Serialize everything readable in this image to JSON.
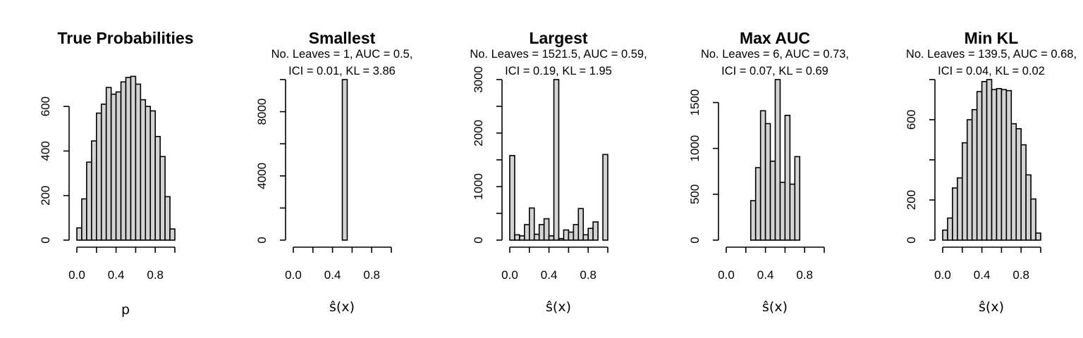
{
  "chart_data": [
    {
      "type": "bar",
      "title": "True Probabilities",
      "subtitle": [],
      "xlabel": "p",
      "ylabel": "",
      "xlim": [
        0,
        1
      ],
      "xticks": [
        0,
        0.4,
        0.8
      ],
      "xticklabels": [
        "0.0",
        "0.4",
        "0.8"
      ],
      "ylim": [
        0,
        730
      ],
      "yticks": [
        0,
        200,
        400,
        600
      ],
      "yticklabels": [
        "0",
        "200",
        "400",
        "600"
      ],
      "bin_width": 0.05,
      "values": [
        55,
        185,
        350,
        445,
        570,
        610,
        685,
        655,
        665,
        710,
        730,
        735,
        700,
        630,
        600,
        580,
        465,
        375,
        195,
        50
      ]
    },
    {
      "type": "bar",
      "title": "Smallest",
      "subtitle": [
        "No. Leaves = 1, AUC = 0.5,",
        "ICI = 0.01, KL = 3.86"
      ],
      "xlabel": "ŝ(x)",
      "ylabel": "",
      "xlim": [
        0,
        1
      ],
      "xticks": [
        0,
        0.4,
        0.8
      ],
      "xticklabels": [
        "0.0",
        "0.4",
        "0.8"
      ],
      "ylim": [
        0,
        10000
      ],
      "yticks": [
        0,
        4000,
        8000
      ],
      "yticklabels": [
        "0",
        "4000",
        "8000"
      ],
      "ytick_marks": [
        0,
        2000,
        4000,
        6000,
        8000,
        10000
      ],
      "bin_width": 0.05,
      "values": [
        0,
        0,
        0,
        0,
        0,
        0,
        0,
        0,
        0,
        0,
        10000,
        0,
        0,
        0,
        0,
        0,
        0,
        0,
        0,
        0
      ]
    },
    {
      "type": "bar",
      "title": "Largest",
      "subtitle": [
        "No. Leaves = 1521.5, AUC = 0.59,",
        "ICI = 0.19, KL = 1.95"
      ],
      "xlabel": "ŝ(x)",
      "ylabel": "",
      "xlim": [
        0,
        1
      ],
      "xticks": [
        0,
        0.4,
        0.8
      ],
      "xticklabels": [
        "0.0",
        "0.4",
        "0.8"
      ],
      "ylim": [
        0,
        3000
      ],
      "yticks": [
        0,
        1000,
        2000,
        3000
      ],
      "yticklabels": [
        "0",
        "1000",
        "2000",
        "3000"
      ],
      "ytick_marks": [
        0,
        500,
        1000,
        1500,
        2000,
        2500,
        3000
      ],
      "bin_width": 0.05,
      "values": [
        1580,
        100,
        80,
        290,
        600,
        110,
        290,
        400,
        80,
        3000,
        30,
        190,
        150,
        290,
        590,
        100,
        220,
        340,
        0,
        1600
      ]
    },
    {
      "type": "bar",
      "title": "Max AUC",
      "subtitle": [
        "No. Leaves = 6, AUC = 0.73,",
        "ICI = 0.07, KL = 0.69"
      ],
      "xlabel": "ŝ(x)",
      "ylabel": "",
      "xlim": [
        0,
        1
      ],
      "xticks": [
        0,
        0.4,
        0.8
      ],
      "xticklabels": [
        "0.0",
        "0.4",
        "0.8"
      ],
      "ylim": [
        0,
        1750
      ],
      "yticks": [
        0,
        500,
        1000,
        1500
      ],
      "yticklabels": [
        "0",
        "500",
        "1000",
        "1500"
      ],
      "bin_width": 0.05,
      "values": [
        0,
        0,
        0,
        0,
        0,
        430,
        790,
        1410,
        1270,
        860,
        1750,
        630,
        1360,
        610,
        910,
        0,
        0,
        0,
        0,
        0
      ]
    },
    {
      "type": "bar",
      "title": "Min KL",
      "subtitle": [
        "No. Leaves = 139.5, AUC = 0.68,",
        "ICI = 0.04, KL = 0.02"
      ],
      "xlabel": "ŝ(x)",
      "ylabel": "",
      "xlim": [
        0,
        1
      ],
      "xticks": [
        0,
        0.4,
        0.8
      ],
      "xticklabels": [
        "0.0",
        "0.4",
        "0.8"
      ],
      "ylim": [
        0,
        800
      ],
      "yticks": [
        0,
        200,
        600
      ],
      "yticklabels": [
        "0",
        "200",
        "600"
      ],
      "ytick_marks": [
        0,
        200,
        400,
        600,
        800
      ],
      "bin_width": 0.05,
      "values": [
        50,
        110,
        260,
        310,
        485,
        600,
        650,
        740,
        790,
        800,
        750,
        755,
        750,
        745,
        580,
        555,
        475,
        325,
        205,
        35
      ]
    }
  ]
}
